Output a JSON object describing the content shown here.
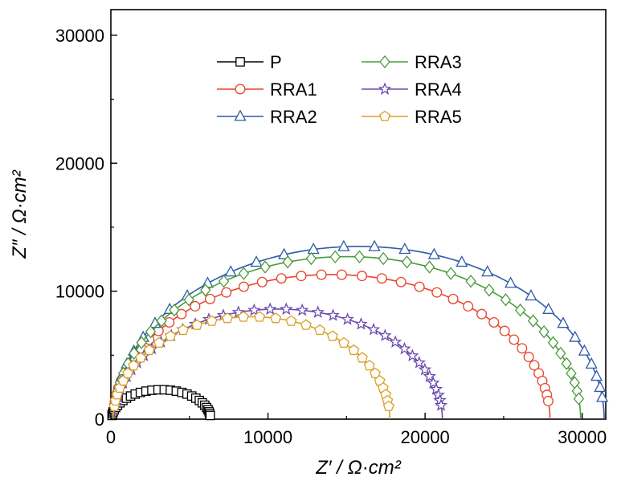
{
  "chart_data": {
    "type": "scatter",
    "title": "",
    "xlabel": "Z′ / Ω·cm²",
    "ylabel": "Z″ / Ω·cm²",
    "xlim": [
      0,
      31500
    ],
    "ylim": [
      0,
      32000
    ],
    "xticks": [
      "0",
      "10000",
      "20000",
      "30000"
    ],
    "yticks": [
      "0",
      "10000",
      "20000",
      "30000"
    ],
    "grid": false,
    "legend_position": "top-center",
    "series": [
      {
        "name": "P",
        "color": "#000000",
        "marker": "square",
        "center": 3200,
        "radius": 3150,
        "peak": 2300,
        "points": 30
      },
      {
        "name": "RRA1",
        "color": "#e8452c",
        "marker": "circle",
        "center": 14050,
        "radius": 13900,
        "peak": 11300,
        "points": 40
      },
      {
        "name": "RRA2",
        "color": "#2e5aa8",
        "marker": "triangle",
        "center": 15800,
        "radius": 15600,
        "peak": 13500,
        "points": 30
      },
      {
        "name": "RRA3",
        "color": "#4a9a3c",
        "marker": "diamond",
        "center": 15050,
        "radius": 14850,
        "peak": 12700,
        "points": 36
      },
      {
        "name": "RRA4",
        "color": "#6a4bb0",
        "marker": "star",
        "center": 10650,
        "radius": 10450,
        "peak": 8600,
        "points": 38
      },
      {
        "name": "RRA5",
        "color": "#d9a024",
        "marker": "pentagon",
        "center": 8950,
        "radius": 8800,
        "peak": 8000,
        "points": 32
      }
    ]
  }
}
